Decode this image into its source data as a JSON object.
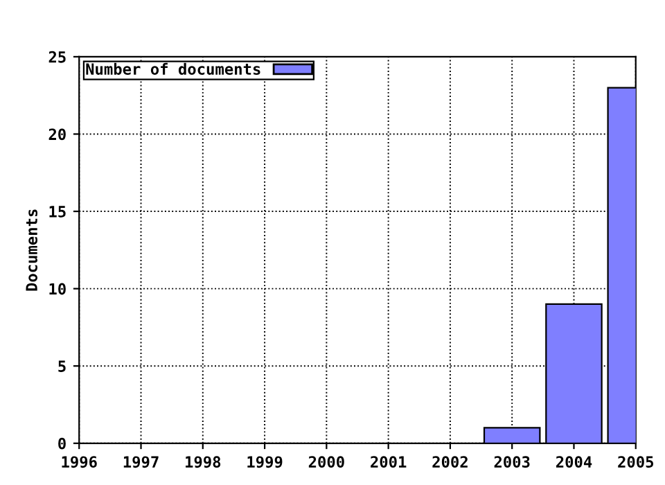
{
  "chart_data": {
    "type": "bar",
    "ylabel": "Documents",
    "x": [
      2003,
      2004,
      2005
    ],
    "series": [
      {
        "name": "Number of documents",
        "color": "#7f7fff",
        "values": [
          1,
          9,
          23
        ]
      }
    ],
    "xlim": [
      1996,
      2005
    ],
    "xticks": [
      1996,
      1997,
      1998,
      1999,
      2000,
      2001,
      2002,
      2003,
      2004,
      2005
    ],
    "ylim": [
      0,
      25
    ],
    "yticks": [
      0,
      5,
      10,
      15,
      20,
      25
    ],
    "grid": true,
    "line_style": "dotted",
    "legend": "top left"
  }
}
